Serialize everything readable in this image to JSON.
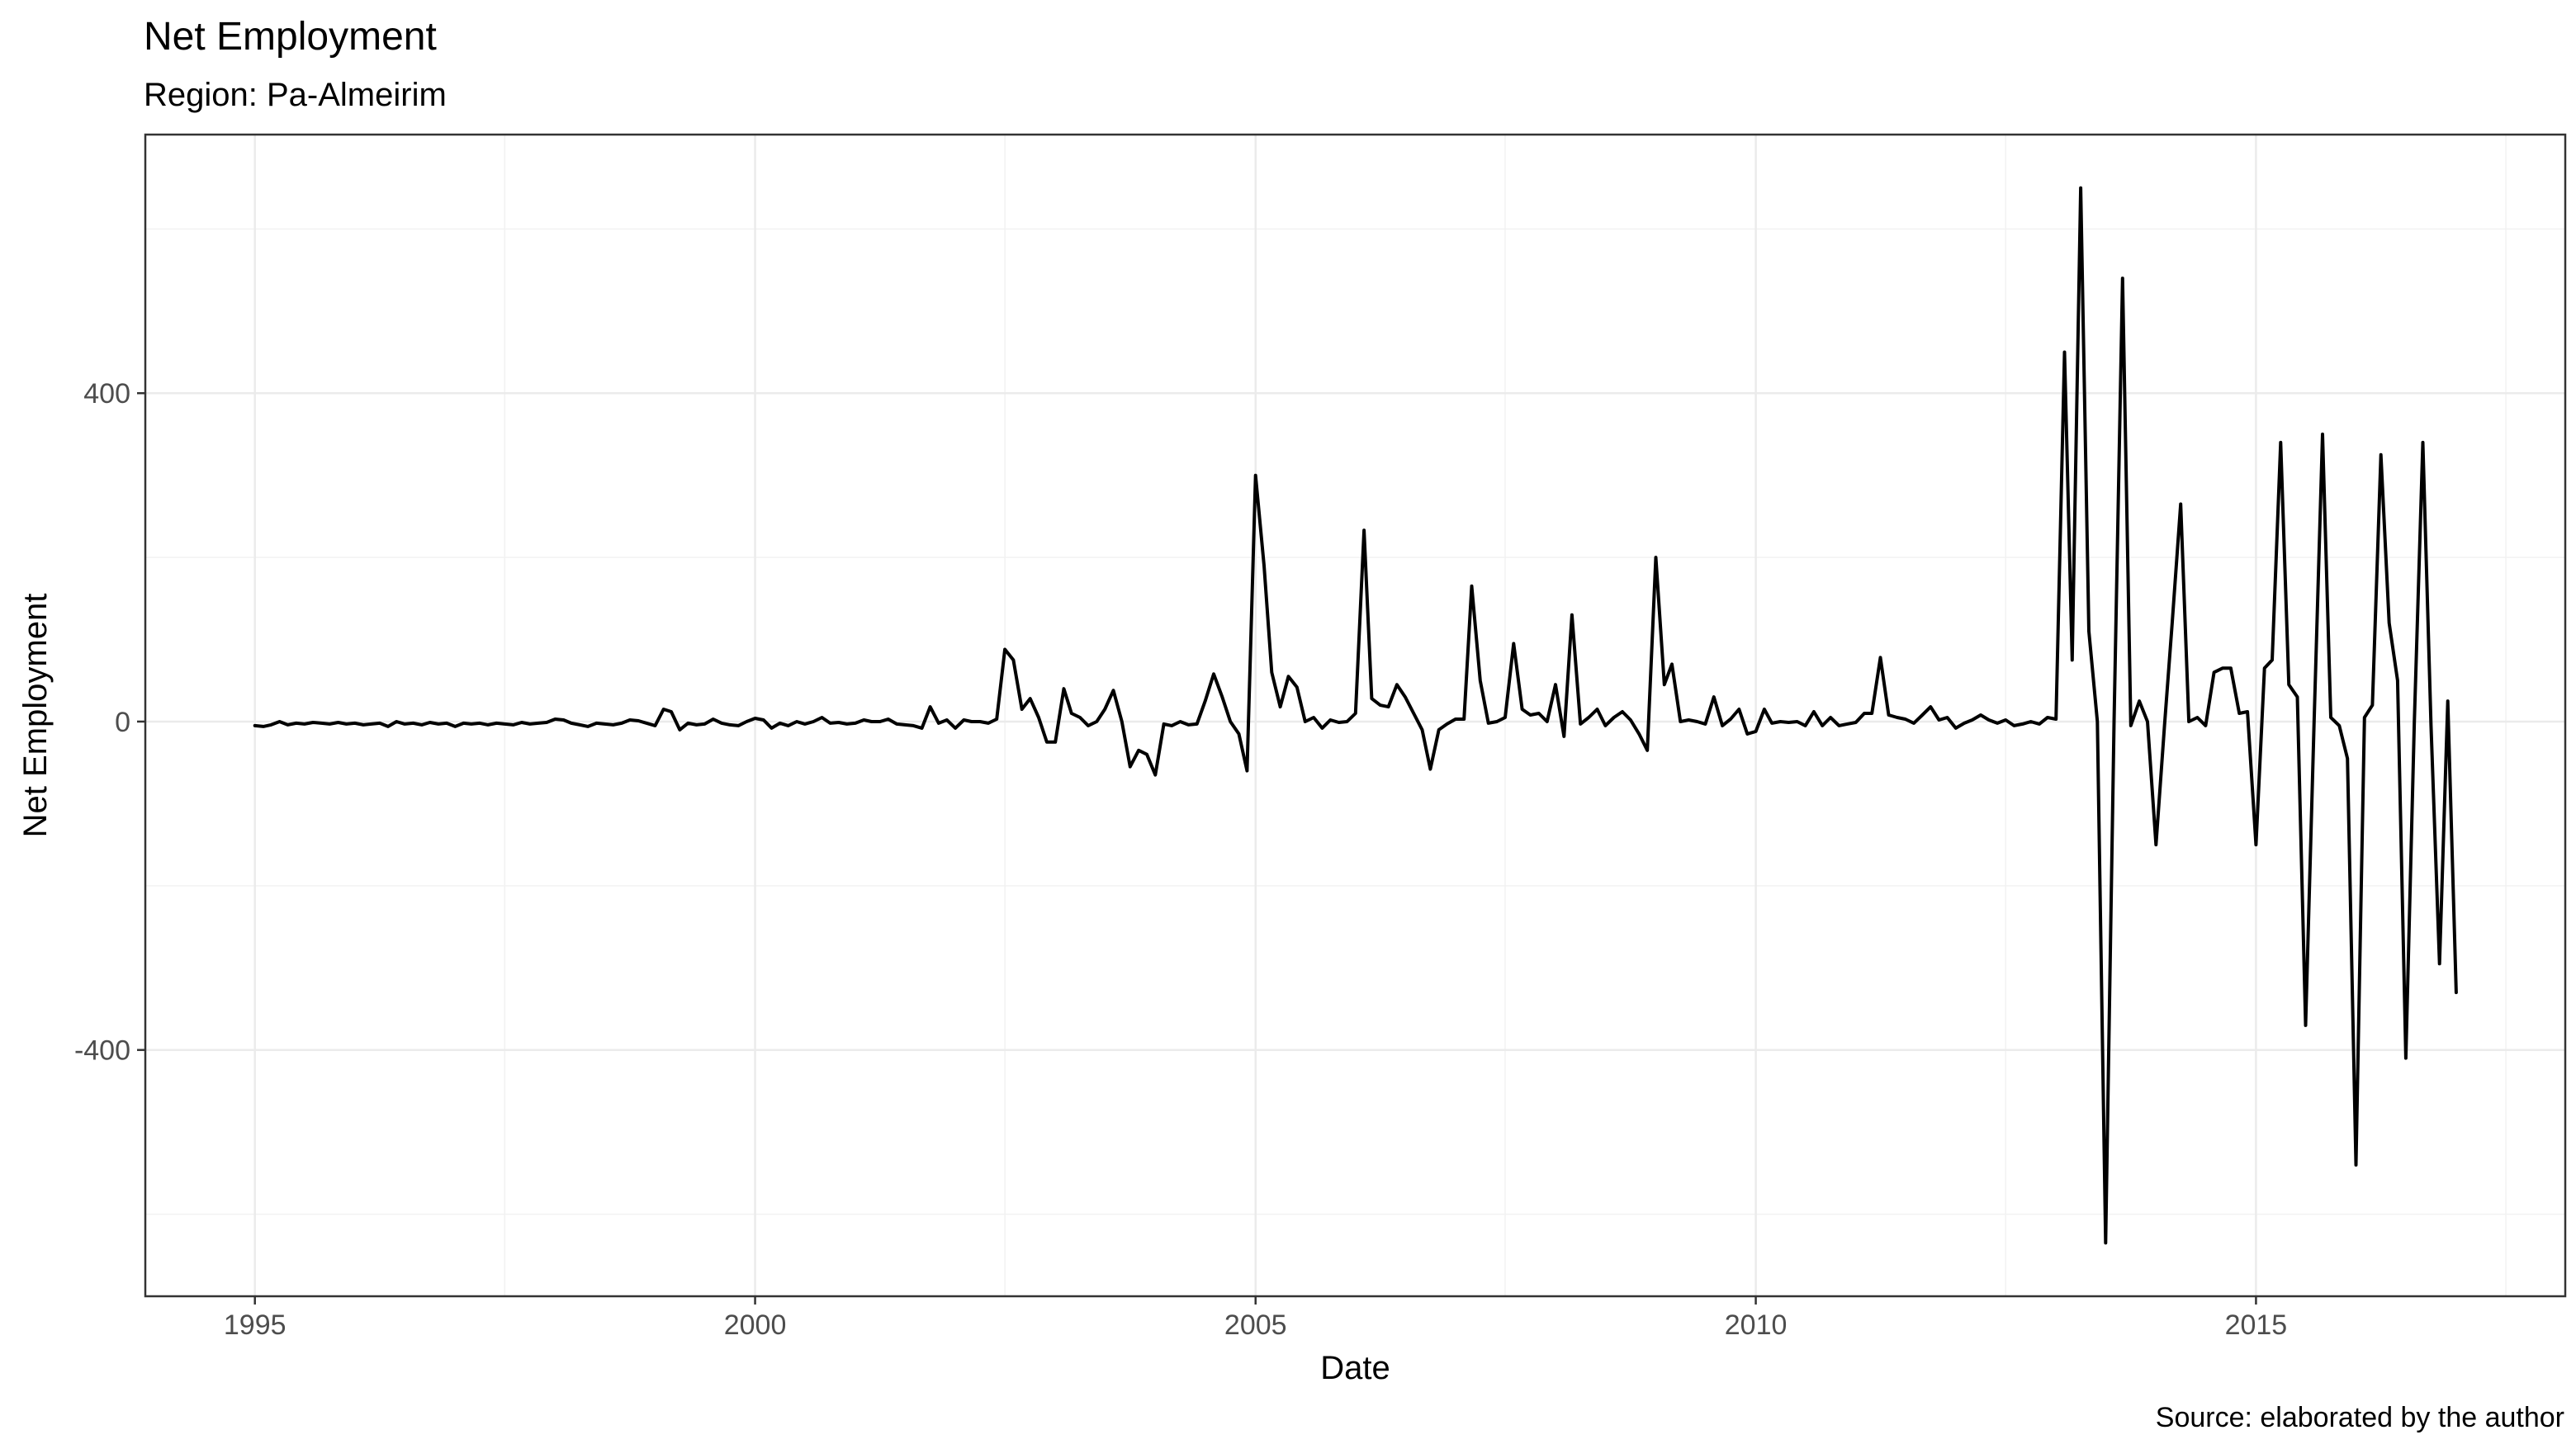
{
  "chart_data": {
    "type": "line",
    "title": "Net Employment",
    "subtitle": "Region: Pa-Almeirim",
    "caption": "Source: elaborated by the author",
    "xlabel": "Date",
    "ylabel": "Net Employment",
    "x_range": [
      "1993-11-27",
      "2018-02-03"
    ],
    "ylim": [
      -700,
      715
    ],
    "x_ticks": [
      {
        "date": "1995-01-01",
        "label": "1995"
      },
      {
        "date": "2000-01-01",
        "label": "2000"
      },
      {
        "date": "2005-01-01",
        "label": "2005"
      },
      {
        "date": "2010-01-01",
        "label": "2010"
      },
      {
        "date": "2015-01-01",
        "label": "2015"
      }
    ],
    "x_minor_ticks": [
      "1997-07-01",
      "2002-07-01",
      "2007-07-01",
      "2012-07-01",
      "2017-07-01"
    ],
    "y_ticks": [
      {
        "value": 400,
        "label": "400"
      },
      {
        "value": 0,
        "label": "0"
      },
      {
        "value": -400,
        "label": "-400"
      }
    ],
    "y_minor_ticks": [
      600,
      200,
      -200,
      -600
    ],
    "grid": true,
    "legend": "none",
    "line_color": "#000000",
    "series": [
      {
        "values": [
          [
            "1995-01-01",
            -5
          ],
          [
            "1995-02-01",
            -6
          ],
          [
            "1995-03-01",
            -4
          ],
          [
            "1995-04-01",
            0
          ],
          [
            "1995-05-01",
            -4
          ],
          [
            "1995-06-01",
            -2
          ],
          [
            "1995-07-01",
            -3
          ],
          [
            "1995-08-01",
            -1
          ],
          [
            "1995-09-01",
            -2
          ],
          [
            "1995-10-01",
            -3
          ],
          [
            "1995-11-01",
            -1
          ],
          [
            "1995-12-01",
            -3
          ],
          [
            "1996-01-01",
            -2
          ],
          [
            "1996-02-01",
            -4
          ],
          [
            "1996-03-01",
            -3
          ],
          [
            "1996-04-01",
            -2
          ],
          [
            "1996-05-01",
            -6
          ],
          [
            "1996-06-01",
            0
          ],
          [
            "1996-07-01",
            -3
          ],
          [
            "1996-08-01",
            -2
          ],
          [
            "1996-09-01",
            -4
          ],
          [
            "1996-10-01",
            -1
          ],
          [
            "1996-11-01",
            -3
          ],
          [
            "1996-12-01",
            -2
          ],
          [
            "1997-01-01",
            -6
          ],
          [
            "1997-02-01",
            -2
          ],
          [
            "1997-03-01",
            -3
          ],
          [
            "1997-04-01",
            -2
          ],
          [
            "1997-05-01",
            -4
          ],
          [
            "1997-06-01",
            -2
          ],
          [
            "1997-07-01",
            -3
          ],
          [
            "1997-08-01",
            -4
          ],
          [
            "1997-09-01",
            -1
          ],
          [
            "1997-10-01",
            -3
          ],
          [
            "1997-11-01",
            -2
          ],
          [
            "1997-12-01",
            -1
          ],
          [
            "1998-01-01",
            3
          ],
          [
            "1998-02-01",
            2
          ],
          [
            "1998-03-01",
            -2
          ],
          [
            "1998-04-01",
            -4
          ],
          [
            "1998-05-01",
            -6
          ],
          [
            "1998-06-01",
            -2
          ],
          [
            "1998-07-01",
            -3
          ],
          [
            "1998-08-01",
            -4
          ],
          [
            "1998-09-01",
            -2
          ],
          [
            "1998-10-01",
            2
          ],
          [
            "1998-11-01",
            1
          ],
          [
            "1998-12-01",
            -2
          ],
          [
            "1999-01-01",
            -5
          ],
          [
            "1999-02-01",
            15
          ],
          [
            "1999-03-01",
            12
          ],
          [
            "1999-04-01",
            -10
          ],
          [
            "1999-05-01",
            -2
          ],
          [
            "1999-06-01",
            -4
          ],
          [
            "1999-07-01",
            -3
          ],
          [
            "1999-08-01",
            3
          ],
          [
            "1999-09-01",
            -2
          ],
          [
            "1999-10-01",
            -4
          ],
          [
            "1999-11-01",
            -5
          ],
          [
            "1999-12-01",
            0
          ],
          [
            "2000-01-01",
            4
          ],
          [
            "2000-02-01",
            2
          ],
          [
            "2000-03-01",
            -8
          ],
          [
            "2000-04-01",
            -2
          ],
          [
            "2000-05-01",
            -5
          ],
          [
            "2000-06-01",
            0
          ],
          [
            "2000-07-01",
            -3
          ],
          [
            "2000-08-01",
            0
          ],
          [
            "2000-09-01",
            5
          ],
          [
            "2000-10-01",
            -2
          ],
          [
            "2000-11-01",
            -1
          ],
          [
            "2000-12-01",
            -3
          ],
          [
            "2001-01-01",
            -2
          ],
          [
            "2001-02-01",
            2
          ],
          [
            "2001-03-01",
            0
          ],
          [
            "2001-04-01",
            0
          ],
          [
            "2001-05-01",
            3
          ],
          [
            "2001-06-01",
            -3
          ],
          [
            "2001-07-01",
            -4
          ],
          [
            "2001-08-01",
            -5
          ],
          [
            "2001-09-01",
            -8
          ],
          [
            "2001-10-01",
            18
          ],
          [
            "2001-11-01",
            -2
          ],
          [
            "2001-12-01",
            2
          ],
          [
            "2002-01-01",
            -8
          ],
          [
            "2002-02-01",
            2
          ],
          [
            "2002-03-01",
            0
          ],
          [
            "2002-04-01",
            0
          ],
          [
            "2002-05-01",
            -2
          ],
          [
            "2002-06-01",
            3
          ],
          [
            "2002-07-01",
            88
          ],
          [
            "2002-08-01",
            75
          ],
          [
            "2002-09-01",
            15
          ],
          [
            "2002-10-01",
            28
          ],
          [
            "2002-11-01",
            5
          ],
          [
            "2002-12-01",
            -25
          ],
          [
            "2003-01-01",
            -25
          ],
          [
            "2003-02-01",
            40
          ],
          [
            "2003-03-01",
            10
          ],
          [
            "2003-04-01",
            5
          ],
          [
            "2003-05-01",
            -5
          ],
          [
            "2003-06-01",
            0
          ],
          [
            "2003-07-01",
            15
          ],
          [
            "2003-08-01",
            38
          ],
          [
            "2003-09-01",
            0
          ],
          [
            "2003-10-01",
            -55
          ],
          [
            "2003-11-01",
            -35
          ],
          [
            "2003-12-01",
            -40
          ],
          [
            "2004-01-01",
            -65
          ],
          [
            "2004-02-01",
            -3
          ],
          [
            "2004-03-01",
            -5
          ],
          [
            "2004-04-01",
            0
          ],
          [
            "2004-05-01",
            -4
          ],
          [
            "2004-06-01",
            -3
          ],
          [
            "2004-07-01",
            25
          ],
          [
            "2004-08-01",
            58
          ],
          [
            "2004-09-01",
            30
          ],
          [
            "2004-10-01",
            0
          ],
          [
            "2004-11-01",
            -15
          ],
          [
            "2004-12-01",
            -60
          ],
          [
            "2005-01-01",
            300
          ],
          [
            "2005-02-01",
            190
          ],
          [
            "2005-03-01",
            60
          ],
          [
            "2005-04-01",
            18
          ],
          [
            "2005-05-01",
            55
          ],
          [
            "2005-06-01",
            42
          ],
          [
            "2005-07-01",
            0
          ],
          [
            "2005-08-01",
            5
          ],
          [
            "2005-09-01",
            -8
          ],
          [
            "2005-10-01",
            2
          ],
          [
            "2005-11-01",
            -1
          ],
          [
            "2005-12-01",
            0
          ],
          [
            "2006-01-01",
            10
          ],
          [
            "2006-02-01",
            233
          ],
          [
            "2006-03-01",
            28
          ],
          [
            "2006-04-01",
            20
          ],
          [
            "2006-05-01",
            18
          ],
          [
            "2006-06-01",
            45
          ],
          [
            "2006-07-01",
            30
          ],
          [
            "2006-08-01",
            10
          ],
          [
            "2006-09-01",
            -10
          ],
          [
            "2006-10-01",
            -58
          ],
          [
            "2006-11-01",
            -10
          ],
          [
            "2006-12-01",
            -3
          ],
          [
            "2007-01-01",
            3
          ],
          [
            "2007-02-01",
            3
          ],
          [
            "2007-03-01",
            165
          ],
          [
            "2007-04-01",
            50
          ],
          [
            "2007-05-01",
            -2
          ],
          [
            "2007-06-01",
            0
          ],
          [
            "2007-07-01",
            5
          ],
          [
            "2007-08-01",
            95
          ],
          [
            "2007-09-01",
            15
          ],
          [
            "2007-10-01",
            8
          ],
          [
            "2007-11-01",
            10
          ],
          [
            "2007-12-01",
            0
          ],
          [
            "2008-01-01",
            45
          ],
          [
            "2008-02-01",
            -18
          ],
          [
            "2008-03-01",
            130
          ],
          [
            "2008-04-01",
            -3
          ],
          [
            "2008-05-01",
            5
          ],
          [
            "2008-06-01",
            15
          ],
          [
            "2008-07-01",
            -5
          ],
          [
            "2008-08-01",
            5
          ],
          [
            "2008-09-01",
            12
          ],
          [
            "2008-10-01",
            2
          ],
          [
            "2008-11-01",
            -15
          ],
          [
            "2008-12-01",
            -35
          ],
          [
            "2009-01-01",
            200
          ],
          [
            "2009-02-01",
            45
          ],
          [
            "2009-03-01",
            70
          ],
          [
            "2009-04-01",
            0
          ],
          [
            "2009-05-01",
            2
          ],
          [
            "2009-06-01",
            0
          ],
          [
            "2009-07-01",
            -3
          ],
          [
            "2009-08-01",
            30
          ],
          [
            "2009-09-01",
            -5
          ],
          [
            "2009-10-01",
            3
          ],
          [
            "2009-11-01",
            15
          ],
          [
            "2009-12-01",
            -15
          ],
          [
            "2010-01-01",
            -12
          ],
          [
            "2010-02-01",
            15
          ],
          [
            "2010-03-01",
            -2
          ],
          [
            "2010-04-01",
            0
          ],
          [
            "2010-05-01",
            -1
          ],
          [
            "2010-06-01",
            0
          ],
          [
            "2010-07-01",
            -5
          ],
          [
            "2010-08-01",
            12
          ],
          [
            "2010-09-01",
            -5
          ],
          [
            "2010-10-01",
            5
          ],
          [
            "2010-11-01",
            -5
          ],
          [
            "2010-12-01",
            -3
          ],
          [
            "2011-01-01",
            -1
          ],
          [
            "2011-02-01",
            10
          ],
          [
            "2011-03-01",
            10
          ],
          [
            "2011-04-01",
            78
          ],
          [
            "2011-05-01",
            8
          ],
          [
            "2011-06-01",
            5
          ],
          [
            "2011-07-01",
            3
          ],
          [
            "2011-08-01",
            -2
          ],
          [
            "2011-09-01",
            8
          ],
          [
            "2011-10-01",
            18
          ],
          [
            "2011-11-01",
            2
          ],
          [
            "2011-12-01",
            5
          ],
          [
            "2012-01-01",
            -8
          ],
          [
            "2012-02-01",
            -2
          ],
          [
            "2012-03-01",
            2
          ],
          [
            "2012-04-01",
            8
          ],
          [
            "2012-05-01",
            2
          ],
          [
            "2012-06-01",
            -2
          ],
          [
            "2012-07-01",
            2
          ],
          [
            "2012-08-01",
            -5
          ],
          [
            "2012-09-01",
            -3
          ],
          [
            "2012-10-01",
            0
          ],
          [
            "2012-11-01",
            -3
          ],
          [
            "2012-12-01",
            5
          ],
          [
            "2013-01-01",
            3
          ],
          [
            "2013-02-01",
            450
          ],
          [
            "2013-03-01",
            75
          ],
          [
            "2013-04-01",
            650
          ],
          [
            "2013-05-01",
            110
          ],
          [
            "2013-06-01",
            0
          ],
          [
            "2013-07-01",
            -635
          ],
          [
            "2013-08-01",
            0
          ],
          [
            "2013-09-01",
            540
          ],
          [
            "2013-10-01",
            -5
          ],
          [
            "2013-11-01",
            25
          ],
          [
            "2013-12-01",
            0
          ],
          [
            "2014-01-01",
            -150
          ],
          [
            "2014-02-01",
            -5
          ],
          [
            "2014-03-01",
            120
          ],
          [
            "2014-04-01",
            265
          ],
          [
            "2014-05-01",
            0
          ],
          [
            "2014-06-01",
            5
          ],
          [
            "2014-07-01",
            -5
          ],
          [
            "2014-08-01",
            60
          ],
          [
            "2014-09-01",
            65
          ],
          [
            "2014-10-01",
            65
          ],
          [
            "2014-11-01",
            10
          ],
          [
            "2014-12-01",
            12
          ],
          [
            "2015-01-01",
            -150
          ],
          [
            "2015-02-01",
            65
          ],
          [
            "2015-03-01",
            75
          ],
          [
            "2015-04-01",
            340
          ],
          [
            "2015-05-01",
            45
          ],
          [
            "2015-06-01",
            30
          ],
          [
            "2015-07-01",
            -370
          ],
          [
            "2015-08-01",
            0
          ],
          [
            "2015-09-01",
            350
          ],
          [
            "2015-10-01",
            5
          ],
          [
            "2015-11-01",
            -5
          ],
          [
            "2015-12-01",
            -45
          ],
          [
            "2016-01-01",
            -540
          ],
          [
            "2016-02-01",
            5
          ],
          [
            "2016-03-01",
            20
          ],
          [
            "2016-04-01",
            325
          ],
          [
            "2016-05-01",
            120
          ],
          [
            "2016-06-01",
            50
          ],
          [
            "2016-07-01",
            -410
          ],
          [
            "2016-08-01",
            0
          ],
          [
            "2016-09-01",
            340
          ],
          [
            "2016-10-01",
            -5
          ],
          [
            "2016-11-01",
            -295
          ],
          [
            "2016-12-01",
            25
          ],
          [
            "2017-01-01",
            -330
          ]
        ]
      }
    ]
  }
}
